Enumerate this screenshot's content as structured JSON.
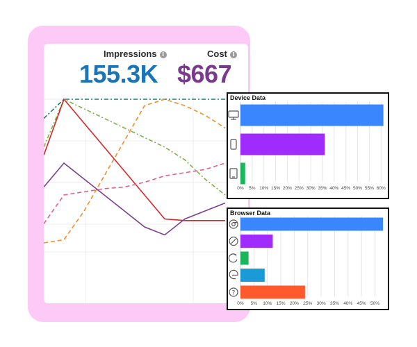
{
  "metrics": [
    {
      "label": "Impressions",
      "value": "155.3K",
      "color": "#1a75b8"
    },
    {
      "label": "Cost",
      "value": "$667",
      "color": "#7a3a8c"
    }
  ],
  "info_icon": "i",
  "chart_data": [
    {
      "type": "line",
      "x": [
        0,
        1,
        2,
        3,
        4,
        5,
        6,
        7,
        8,
        9
      ],
      "series": [
        {
          "color": "#1a7a6e",
          "dash": "6,3,2,3",
          "values": [
            88,
            100,
            100,
            100,
            100,
            100,
            100,
            100,
            100,
            100
          ]
        },
        {
          "color": "#7cb342",
          "dash": "6,3,2,3",
          "values": [
            70,
            100,
            94,
            88,
            82,
            76,
            70,
            62,
            50,
            40
          ]
        },
        {
          "color": "#f28e2b",
          "dash": "6,4",
          "values": [
            10,
            12,
            30,
            52,
            74,
            96,
            100,
            96,
            90,
            82
          ]
        },
        {
          "color": "#d62728",
          "dash": "",
          "values": [
            65,
            100,
            85,
            70,
            55,
            40,
            25,
            24,
            24,
            24
          ]
        },
        {
          "color": "#7b3f8f",
          "dash": "",
          "values": [
            45,
            60,
            50,
            40,
            30,
            20,
            15,
            25,
            30,
            35
          ]
        },
        {
          "color": "#e0608a",
          "dash": "6,4",
          "values": [
            22,
            40,
            42,
            44,
            45,
            48,
            52,
            54,
            56,
            60
          ]
        }
      ]
    },
    {
      "type": "bar",
      "title": "Device Data",
      "orientation": "horizontal",
      "categories": [
        "Desktop",
        "Mobile",
        "Tablet"
      ],
      "icons": [
        "desktop-icon",
        "mobile-icon",
        "tablet-icon"
      ],
      "values": [
        61,
        36,
        2
      ],
      "colors": [
        "#3a86ff",
        "#a02bff",
        "#1bb55c"
      ],
      "xlim": [
        0,
        62
      ],
      "ticks": [
        "0%",
        "5%",
        "10%",
        "15%",
        "20%",
        "25%",
        "30%",
        "35%",
        "40%",
        "45%",
        "50%",
        "55%",
        "60%"
      ],
      "tick_values": [
        0,
        5,
        10,
        15,
        20,
        25,
        30,
        35,
        40,
        45,
        50,
        55,
        60
      ]
    },
    {
      "type": "bar",
      "title": "Browser Data",
      "orientation": "horizontal",
      "categories": [
        "Chrome",
        "Safari",
        "Firefox",
        "Edge",
        "Other"
      ],
      "icons": [
        "chrome-icon",
        "safari-icon",
        "firefox-icon",
        "edge-icon",
        "unknown-browser-icon"
      ],
      "values": [
        53,
        12,
        3,
        9,
        24
      ],
      "colors": [
        "#3a86ff",
        "#a02bff",
        "#1bb55c",
        "#1a9ad6",
        "#ff5a2c"
      ],
      "xlim": [
        0,
        54
      ],
      "ticks": [
        "0%",
        "5%",
        "10%",
        "15%",
        "20%",
        "25%",
        "30%",
        "35%",
        "40%",
        "45%",
        "50%"
      ],
      "tick_values": [
        0,
        5,
        10,
        15,
        20,
        25,
        30,
        35,
        40,
        45,
        50
      ]
    }
  ]
}
